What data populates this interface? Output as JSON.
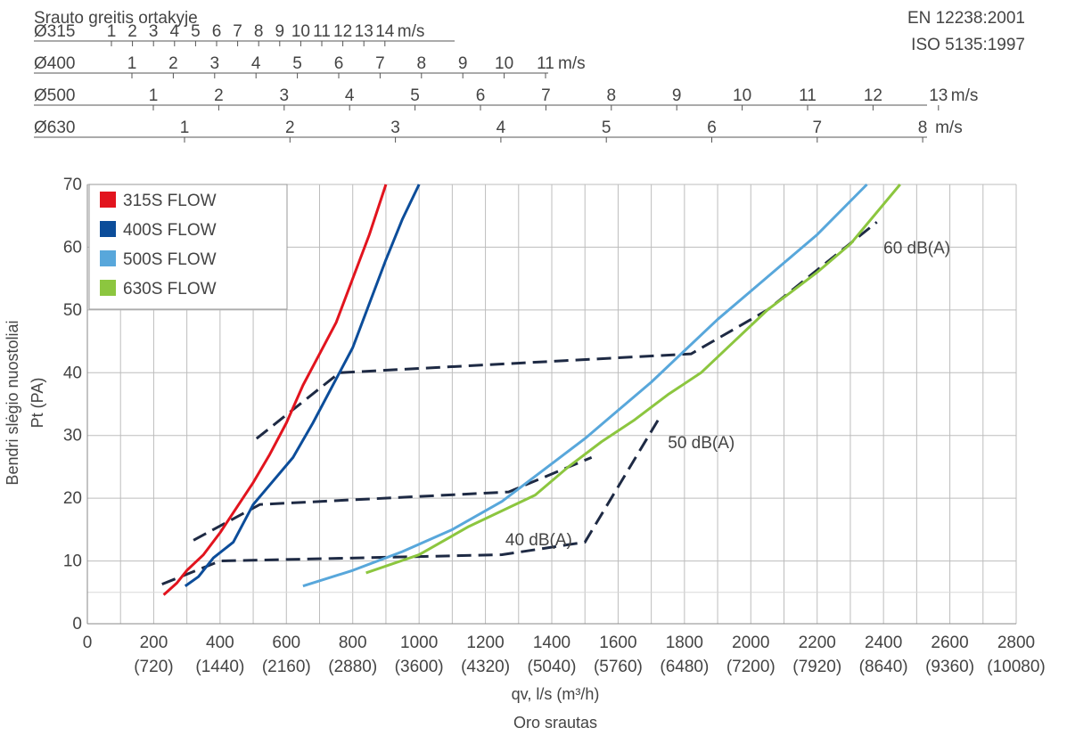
{
  "header": {
    "velocity_title": "Srauto greitis ortakyje",
    "standard_1": "EN 12238:2001",
    "standard_2": "ISO 5135:1997"
  },
  "velocity_scales": [
    {
      "label": "Ø315",
      "unit": "m/s",
      "ticks": [
        1,
        2,
        3,
        4,
        5,
        6,
        7,
        8,
        9,
        10,
        11,
        12,
        13,
        14
      ]
    },
    {
      "label": "Ø400",
      "unit": "m/s",
      "ticks": [
        1,
        2,
        3,
        4,
        5,
        6,
        7,
        8,
        9,
        10,
        11
      ]
    },
    {
      "label": "Ø500",
      "unit": "m/s",
      "ticks": [
        1,
        2,
        3,
        4,
        5,
        6,
        7,
        8,
        9,
        10,
        11,
        12,
        13
      ]
    },
    {
      "label": "Ø630",
      "unit": "m/s",
      "ticks": [
        1,
        2,
        3,
        4,
        5,
        6,
        7,
        8
      ]
    }
  ],
  "chart_data": {
    "type": "line",
    "title": "",
    "xlabel": "qv, l/s (m³/h)",
    "xlabel_2": "Oro srautas",
    "ylabel": "Bendri slėgio nuostoliai",
    "ylabel_2": "Pt (PA)",
    "xlim": [
      0,
      2800
    ],
    "ylim": [
      0,
      70
    ],
    "x_ticks": [
      {
        "value": 0,
        "label": "0",
        "sub": ""
      },
      {
        "value": 200,
        "label": "200",
        "sub": "(720)"
      },
      {
        "value": 400,
        "label": "400",
        "sub": "(1440)"
      },
      {
        "value": 600,
        "label": "600",
        "sub": "(2160)"
      },
      {
        "value": 800,
        "label": "800",
        "sub": "(2880)"
      },
      {
        "value": 1000,
        "label": "1000",
        "sub": "(3600)"
      },
      {
        "value": 1200,
        "label": "1200",
        "sub": "(4320)"
      },
      {
        "value": 1400,
        "label": "1400",
        "sub": "(5040)"
      },
      {
        "value": 1600,
        "label": "1600",
        "sub": "(5760)"
      },
      {
        "value": 1800,
        "label": "1800",
        "sub": "(6480)"
      },
      {
        "value": 2000,
        "label": "2000",
        "sub": "(7200)"
      },
      {
        "value": 2200,
        "label": "2200",
        "sub": "(7920)"
      },
      {
        "value": 2400,
        "label": "2400",
        "sub": "(8640)"
      },
      {
        "value": 2600,
        "label": "2600",
        "sub": "(9360)"
      },
      {
        "value": 2800,
        "label": "2800",
        "sub": "(10080)"
      }
    ],
    "y_ticks": [
      0,
      10,
      20,
      30,
      40,
      50,
      60,
      70
    ],
    "grid": true,
    "legend_position": "top-left",
    "series": [
      {
        "name": "315S FLOW",
        "color": "#e2141e",
        "points": [
          [
            230,
            4.6
          ],
          [
            270,
            6.5
          ],
          [
            300,
            8.5
          ],
          [
            350,
            11
          ],
          [
            400,
            14.5
          ],
          [
            450,
            18.5
          ],
          [
            500,
            22.5
          ],
          [
            550,
            27
          ],
          [
            600,
            32
          ],
          [
            650,
            38
          ],
          [
            700,
            43
          ],
          [
            750,
            48
          ],
          [
            800,
            55
          ],
          [
            850,
            62
          ],
          [
            900,
            70
          ]
        ]
      },
      {
        "name": "400S FLOW",
        "color": "#0c4d9a",
        "points": [
          [
            295,
            6
          ],
          [
            335,
            7.5
          ],
          [
            380,
            10.5
          ],
          [
            440,
            13
          ],
          [
            500,
            19
          ],
          [
            620,
            26.5
          ],
          [
            680,
            32
          ],
          [
            750,
            39
          ],
          [
            800,
            44
          ],
          [
            900,
            58
          ],
          [
            950,
            64.5
          ],
          [
            1000,
            70
          ]
        ]
      },
      {
        "name": "500S FLOW",
        "color": "#58a7db",
        "points": [
          [
            650,
            6
          ],
          [
            800,
            8.5
          ],
          [
            950,
            11.5
          ],
          [
            1100,
            15
          ],
          [
            1250,
            19.5
          ],
          [
            1400,
            25.5
          ],
          [
            1500,
            29.5
          ],
          [
            1600,
            34
          ],
          [
            1700,
            38.5
          ],
          [
            1800,
            43.5
          ],
          [
            1900,
            48.5
          ],
          [
            2000,
            53
          ],
          [
            2100,
            57.5
          ],
          [
            2200,
            62
          ],
          [
            2350,
            70
          ]
        ]
      },
      {
        "name": "630S FLOW",
        "color": "#8cc63f",
        "points": [
          [
            840,
            8.1
          ],
          [
            1000,
            11
          ],
          [
            1150,
            15.5
          ],
          [
            1350,
            20.5
          ],
          [
            1450,
            25
          ],
          [
            1550,
            29
          ],
          [
            1650,
            32.5
          ],
          [
            1750,
            36.5
          ],
          [
            1850,
            40
          ],
          [
            1950,
            45
          ],
          [
            2050,
            50
          ],
          [
            2200,
            56
          ],
          [
            2300,
            60.5
          ],
          [
            2450,
            70
          ]
        ]
      }
    ],
    "dashed_lines": [
      {
        "name": "40 dB(A)",
        "color": "#1e2a44",
        "points": [
          [
            225,
            6.3
          ],
          [
            400,
            10
          ],
          [
            1250,
            11
          ],
          [
            1500,
            13
          ],
          [
            1730,
            33.3
          ]
        ]
      },
      {
        "name": "50 dB(A)",
        "color": "#1e2a44",
        "points": [
          [
            320,
            13.3
          ],
          [
            520,
            19
          ],
          [
            1270,
            21
          ],
          [
            1520,
            26.5
          ]
        ]
      },
      {
        "name": "60 dB(A)",
        "color": "#1e2a44",
        "points": [
          [
            510,
            29.5
          ],
          [
            760,
            40
          ],
          [
            1820,
            43
          ],
          [
            2050,
            50
          ],
          [
            2380,
            64
          ]
        ]
      }
    ],
    "annotations": [
      "40 dB(A)",
      "50 dB(A)",
      "60 dB(A)"
    ]
  }
}
